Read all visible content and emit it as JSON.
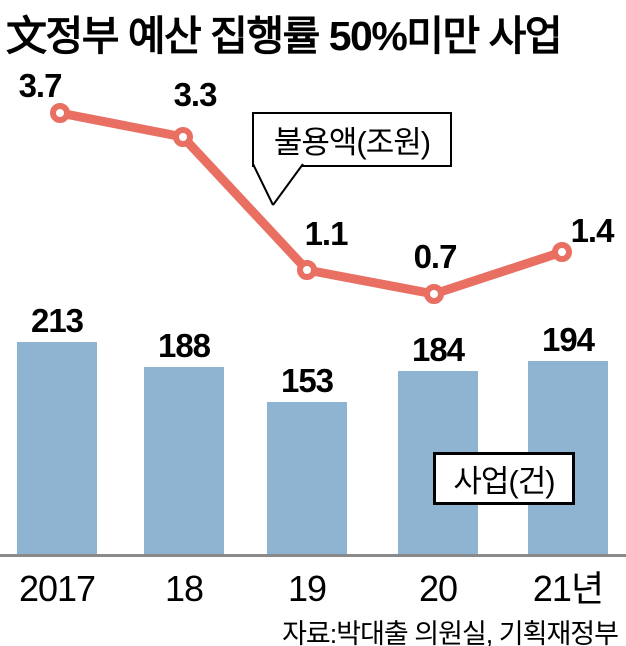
{
  "title": "文정부 예산 집행률 50%미만 사업",
  "source": "자료:박대출 의원실, 기획재정부",
  "colors": {
    "line": "#e96f62",
    "bar": "#8eb4d2",
    "axis": "#8a8a8a",
    "text": "#000000",
    "background": "#ffffff"
  },
  "chart_data": {
    "type": "combo (bar + line)",
    "categories": [
      "2017",
      "18",
      "19",
      "20",
      "21년"
    ],
    "series": [
      {
        "name": "불용액(조원)",
        "type": "line",
        "unit": "조원",
        "values": [
          3.7,
          3.3,
          1.1,
          0.7,
          1.4
        ],
        "color": "#e96f62",
        "legend_label": "불용액(조원)"
      },
      {
        "name": "사업(건)",
        "type": "bar",
        "unit": "건",
        "values": [
          213,
          188,
          153,
          184,
          194
        ],
        "color": "#8eb4d2",
        "legend_label": "사업(건)"
      }
    ],
    "grid": false,
    "legend_position": "boxed labels inside plot (line legend has callout tail)",
    "value_labels": "every point and bar labeled above",
    "bar_axis_baseline": 0
  }
}
